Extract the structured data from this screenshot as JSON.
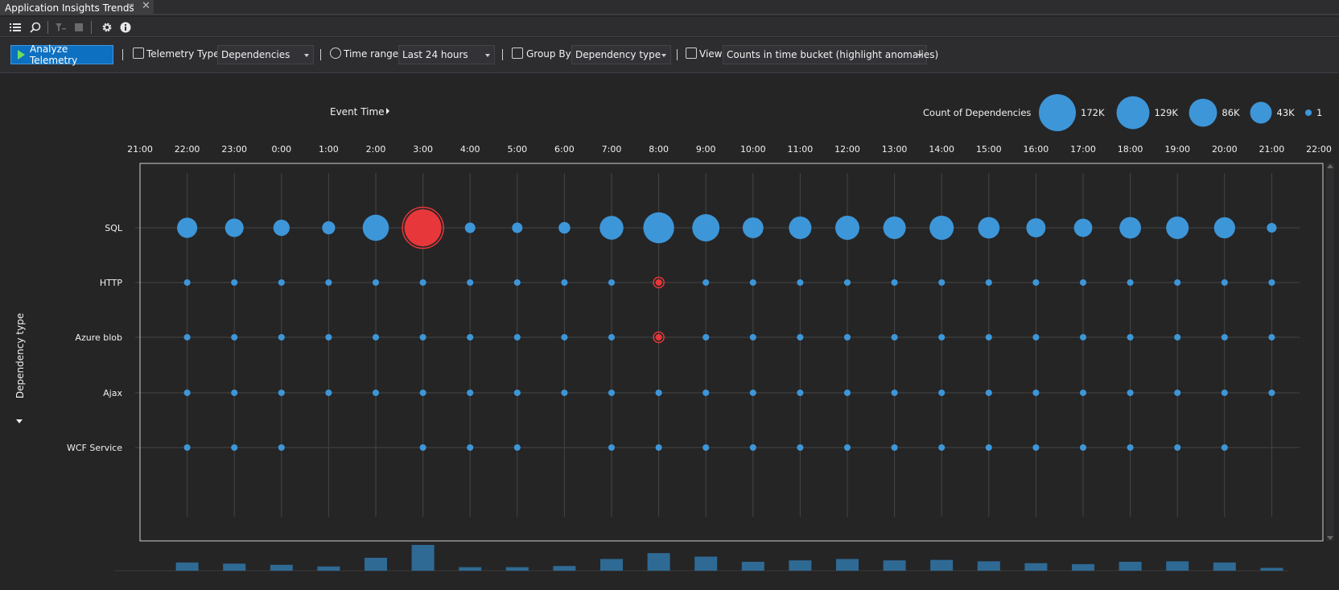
{
  "window": {
    "tab_title": "Application Insights Trends",
    "pin_glyph": "⊸",
    "close_glyph": "✕"
  },
  "toolbar": {
    "icons": [
      "list-icon",
      "search-icon",
      "filter-icon",
      "stop-icon",
      "gear-icon",
      "info-icon"
    ]
  },
  "controls": {
    "analyze_label": "Analyze Telemetry",
    "telemetry_type_label": "Telemetry Type:",
    "telemetry_type_value": "Dependencies",
    "time_range_label": "Time range:",
    "time_range_value": "Last 24 hours",
    "group_by_label": "Group By:",
    "group_by_value": "Dependency type",
    "view_label": "View",
    "view_value": "Counts in time bucket (highlight anomalies)"
  },
  "colors": {
    "bubble": "#3d96d8",
    "anomaly": "#e8373a",
    "histogram": "#2f6a94",
    "grid": "#454545",
    "background": "#252526"
  },
  "chart_data": {
    "type": "scatter",
    "x_header": "Event Time",
    "y_axis_label": "Dependency type",
    "x_ticks": [
      "21:00",
      "22:00",
      "23:00",
      "0:00",
      "1:00",
      "2:00",
      "3:00",
      "4:00",
      "5:00",
      "6:00",
      "7:00",
      "8:00",
      "9:00",
      "10:00",
      "11:00",
      "12:00",
      "13:00",
      "14:00",
      "15:00",
      "16:00",
      "17:00",
      "18:00",
      "19:00",
      "20:00",
      "21:00",
      "22:00"
    ],
    "buckets": [
      "22:00",
      "23:00",
      "0:00",
      "1:00",
      "2:00",
      "3:00",
      "4:00",
      "5:00",
      "6:00",
      "7:00",
      "8:00",
      "9:00",
      "10:00",
      "11:00",
      "12:00",
      "13:00",
      "14:00",
      "15:00",
      "16:00",
      "17:00",
      "18:00",
      "19:00",
      "20:00",
      "21:00"
    ],
    "size_legend": {
      "title": "Count of Dependencies",
      "entries": [
        {
          "label": "172K",
          "value": 172000
        },
        {
          "label": "129K",
          "value": 129000
        },
        {
          "label": "86K",
          "value": 86000
        },
        {
          "label": "43K",
          "value": 43000
        },
        {
          "label": "1",
          "value": 1
        }
      ]
    },
    "series": [
      {
        "name": "SQL",
        "values": [
          35000,
          27000,
          18000,
          8000,
          72000,
          172000,
          3000,
          3000,
          5000,
          55000,
          110000,
          80000,
          38000,
          48000,
          58000,
          48000,
          58000,
          42000,
          30000,
          26000,
          42000,
          48000,
          40000,
          2000
        ],
        "anomalies": [
          5
        ]
      },
      {
        "name": "HTTP",
        "values": [
          1,
          1,
          1,
          1,
          1,
          1,
          1,
          1,
          1,
          1,
          1,
          1,
          1,
          1,
          1,
          1,
          1,
          1,
          1,
          1,
          1,
          1,
          1,
          1
        ],
        "anomalies": [
          10
        ]
      },
      {
        "name": "Azure blob",
        "values": [
          1,
          1,
          1,
          1,
          1,
          1,
          1,
          1,
          1,
          1,
          1,
          1,
          1,
          1,
          1,
          1,
          1,
          1,
          1,
          1,
          1,
          1,
          1,
          1
        ],
        "anomalies": [
          10
        ]
      },
      {
        "name": "Ajax",
        "values": [
          1,
          1,
          1,
          1,
          1,
          1,
          1,
          1,
          1,
          1,
          1,
          1,
          1,
          1,
          1,
          1,
          1,
          1,
          1,
          1,
          1,
          1,
          1,
          1
        ],
        "anomalies": []
      },
      {
        "name": "WCF Service",
        "values": [
          1,
          1,
          1,
          null,
          null,
          1,
          1,
          1,
          null,
          1,
          1,
          1,
          1,
          1,
          1,
          1,
          1,
          1,
          1,
          1,
          1,
          1,
          1,
          null
        ],
        "anomalies": []
      }
    ],
    "histogram": [
      35,
      30,
      25,
      18,
      55,
      110,
      15,
      15,
      20,
      50,
      75,
      60,
      38,
      44,
      50,
      44,
      46,
      40,
      32,
      28,
      38,
      40,
      35,
      12
    ]
  }
}
